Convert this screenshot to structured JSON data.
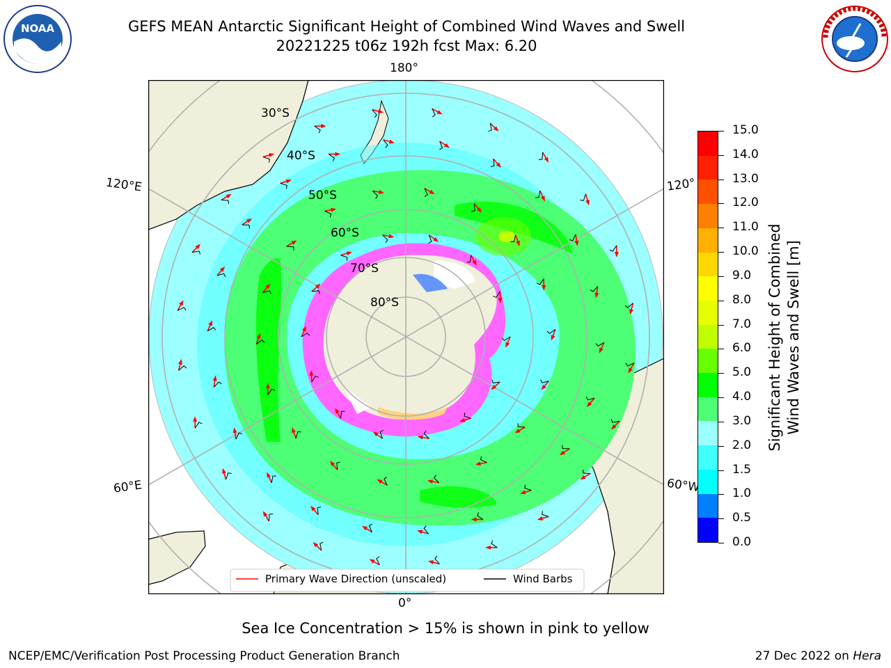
{
  "title": {
    "line1": "GEFS MEAN Antarctic Significant Height of Combined Wind Waves and Swell",
    "line2": "20221225 t06z 192h fcst   Max: 6.20"
  },
  "logos": {
    "left": "NOAA",
    "right": "NATIONAL WEATHER SERVICE"
  },
  "map": {
    "projection": "south-polar-stereographic",
    "longitude_labels": {
      "top": "180°",
      "bottom": "0°",
      "upper_left": "120°E",
      "lower_left": "60°E",
      "upper_right": "120°",
      "lower_right": "60°W"
    },
    "latitude_labels": [
      "30°S",
      "40°S",
      "50°S",
      "60°S",
      "70°S",
      "80°S"
    ],
    "legend": {
      "wave": "Primary Wave Direction (unscaled)",
      "wind": "Wind Barbs"
    }
  },
  "colorbar": {
    "label": "Significant Height of Combined\nWind Waves and Swell [m]",
    "tick_labels": [
      "0.0",
      "0.5",
      "1.0",
      "1.5",
      "2.0",
      "3.0",
      "4.0",
      "5.0",
      "6.0",
      "7.0",
      "8.0",
      "9.0",
      "10.0",
      "11.0",
      "12.0",
      "13.0",
      "14.0",
      "15.0"
    ],
    "colors": [
      "#0000ff",
      "#0080ff",
      "#00ffff",
      "#40ffff",
      "#9cffff",
      "#4cff74",
      "#00ff00",
      "#66ff00",
      "#bfff00",
      "#e6ff00",
      "#ffff00",
      "#ffd700",
      "#ffb000",
      "#ff8000",
      "#ff5000",
      "#ff2000",
      "#ff0000"
    ]
  },
  "footer": {
    "ice_note": "Sea Ice Concentration > 15% is shown in pink to yellow",
    "credit": "NCEP/EMC/Verification Post Processing Product Generation Branch",
    "date": "27 Dec 2022 on ",
    "machine": "Hera"
  }
}
